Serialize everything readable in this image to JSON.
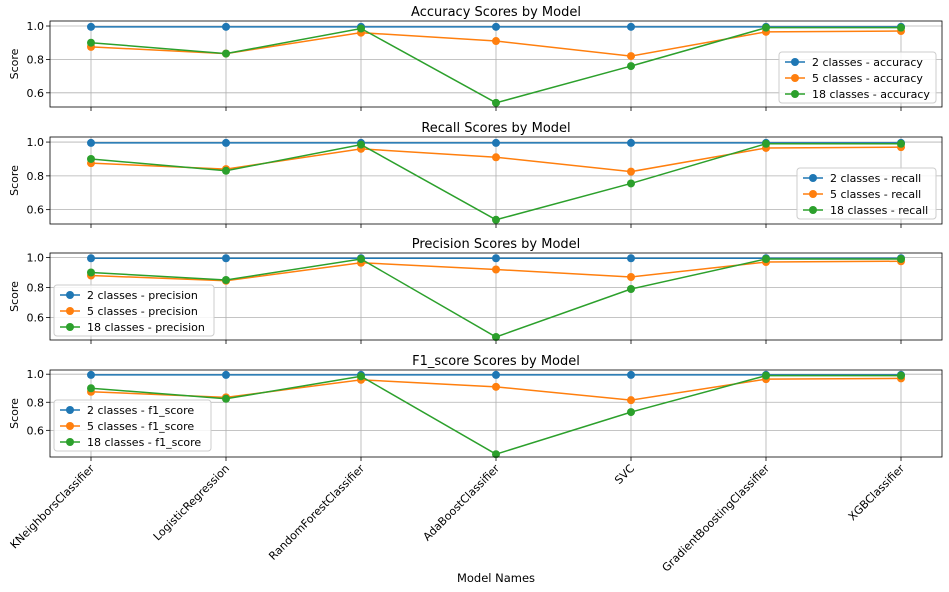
{
  "chart_data": [
    {
      "type": "line",
      "title": "Accuracy Scores by Model",
      "ylabel": "Score",
      "ylim": [
        0.515,
        1.03
      ],
      "yticks": [
        "0.6",
        "0.8",
        "1.0"
      ],
      "yticks_values": [
        0.6,
        0.8,
        1.0
      ],
      "grid": true,
      "legend_position": "lower-right",
      "series": [
        {
          "name": "2 classes - accuracy",
          "color": "#1f77b4",
          "values": [
            0.995,
            0.995,
            0.995,
            0.995,
            0.995,
            0.995,
            0.995
          ]
        },
        {
          "name": "5 classes - accuracy",
          "color": "#ff7f0e",
          "values": [
            0.875,
            0.835,
            0.96,
            0.91,
            0.82,
            0.965,
            0.97
          ]
        },
        {
          "name": "18 classes - accuracy",
          "color": "#2ca02c",
          "values": [
            0.9,
            0.835,
            0.985,
            0.54,
            0.76,
            0.99,
            0.99
          ]
        }
      ]
    },
    {
      "type": "line",
      "title": "Recall Scores by Model",
      "ylabel": "Score",
      "ylim": [
        0.515,
        1.03
      ],
      "yticks": [
        "0.6",
        "0.8",
        "1.0"
      ],
      "yticks_values": [
        0.6,
        0.8,
        1.0
      ],
      "grid": true,
      "legend_position": "lower-right",
      "series": [
        {
          "name": "2 classes - recall",
          "color": "#1f77b4",
          "values": [
            0.995,
            0.995,
            0.995,
            0.995,
            0.995,
            0.995,
            0.995
          ]
        },
        {
          "name": "5 classes - recall",
          "color": "#ff7f0e",
          "values": [
            0.875,
            0.84,
            0.96,
            0.91,
            0.825,
            0.965,
            0.97
          ]
        },
        {
          "name": "18 classes - recall",
          "color": "#2ca02c",
          "values": [
            0.9,
            0.83,
            0.985,
            0.54,
            0.755,
            0.99,
            0.99
          ]
        }
      ]
    },
    {
      "type": "line",
      "title": "Precision Scores by Model",
      "ylabel": "Score",
      "ylim": [
        0.45,
        1.03
      ],
      "yticks": [
        "0.6",
        "0.8",
        "1.0"
      ],
      "yticks_values": [
        0.6,
        0.8,
        1.0
      ],
      "grid": true,
      "legend_position": "lower-left",
      "series": [
        {
          "name": "2 classes - precision",
          "color": "#1f77b4",
          "values": [
            0.995,
            0.995,
            0.995,
            0.995,
            0.995,
            0.995,
            0.995
          ]
        },
        {
          "name": "5 classes - precision",
          "color": "#ff7f0e",
          "values": [
            0.88,
            0.845,
            0.965,
            0.92,
            0.87,
            0.97,
            0.975
          ]
        },
        {
          "name": "18 classes - precision",
          "color": "#2ca02c",
          "values": [
            0.9,
            0.85,
            0.99,
            0.47,
            0.79,
            0.99,
            0.99
          ]
        }
      ]
    },
    {
      "type": "line",
      "title": "F1_score Scores by Model",
      "ylabel": "Score",
      "ylim": [
        0.41,
        1.03
      ],
      "yticks": [
        "0.6",
        "0.8",
        "1.0"
      ],
      "yticks_values": [
        0.6,
        0.8,
        1.0
      ],
      "grid": true,
      "legend_position": "lower-left",
      "series": [
        {
          "name": "2 classes - f1_score",
          "color": "#1f77b4",
          "values": [
            0.995,
            0.995,
            0.995,
            0.995,
            0.995,
            0.995,
            0.995
          ]
        },
        {
          "name": "5 classes - f1_score",
          "color": "#ff7f0e",
          "values": [
            0.875,
            0.835,
            0.96,
            0.91,
            0.815,
            0.965,
            0.97
          ]
        },
        {
          "name": "18 classes - f1_score",
          "color": "#2ca02c",
          "values": [
            0.9,
            0.825,
            0.985,
            0.43,
            0.73,
            0.99,
            0.99
          ]
        }
      ]
    }
  ],
  "shared": {
    "categories": [
      "KNeighborsClassifier",
      "LogisticRegression",
      "RandomForestClassifier",
      "AdaBoostClassifier",
      "SVC",
      "GradientBoostingClassifier",
      "XGBClassifier"
    ],
    "xlabel": "Model Names"
  }
}
